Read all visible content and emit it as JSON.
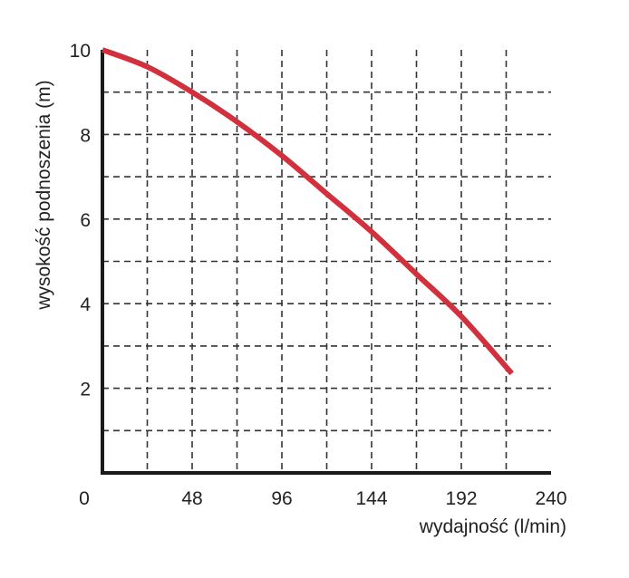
{
  "chart_data": {
    "type": "line",
    "title": "",
    "xlabel": "wydajność (l/min)",
    "ylabel": "wysokość podnoszenia (m)",
    "xlim": [
      0,
      240
    ],
    "ylim": [
      0,
      10
    ],
    "x_ticks": [
      "0",
      "48",
      "96",
      "144",
      "192",
      "240"
    ],
    "y_ticks": [
      "2",
      "4",
      "6",
      "8",
      "10"
    ],
    "grid": true,
    "grid_style": "dashed",
    "series": [
      {
        "color": "#d0313c",
        "x": [
          0,
          24,
          48,
          72,
          96,
          120,
          144,
          168,
          192,
          219
        ],
        "y": [
          10,
          9.6,
          9.0,
          8.3,
          7.5,
          6.6,
          5.7,
          4.7,
          3.7,
          2.35
        ]
      }
    ]
  }
}
